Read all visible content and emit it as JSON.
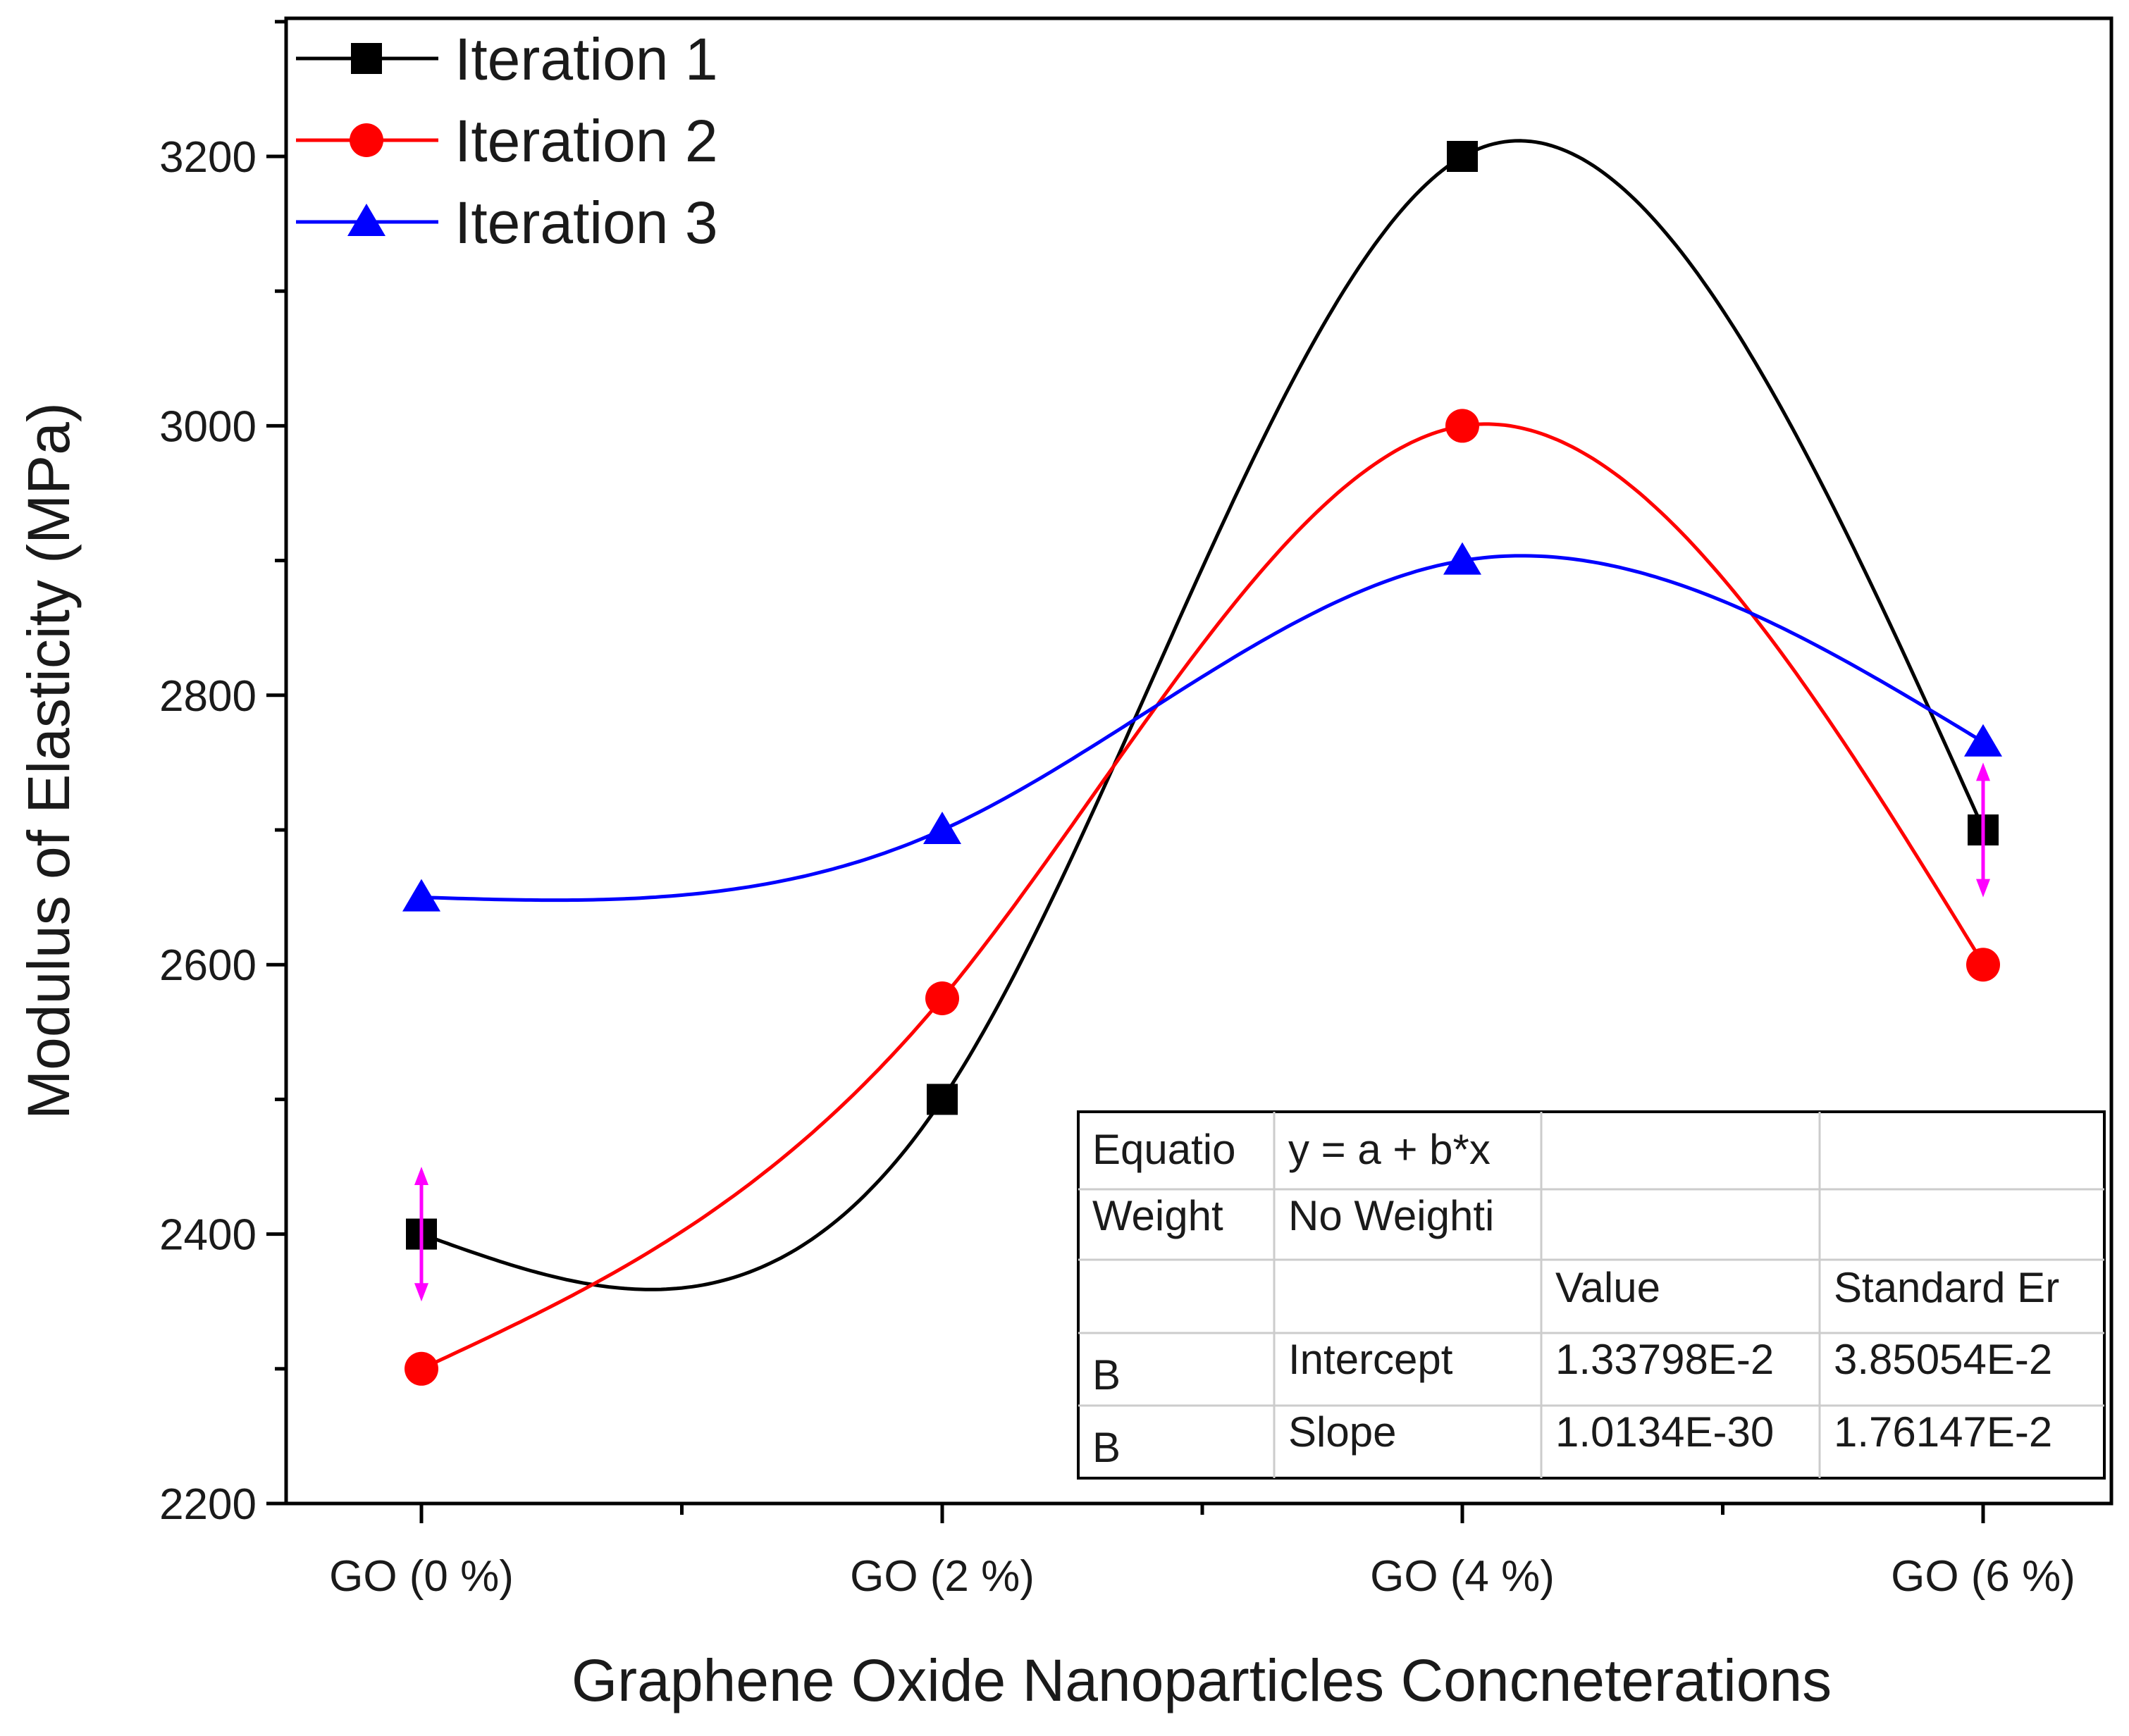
{
  "chart_data": {
    "type": "line",
    "title": "",
    "xlabel": "Graphene Oxide Nanoparticles Concneterations",
    "ylabel": "Modulus of Elasticity (MPa)",
    "categories": [
      "GO (0 %)",
      "GO (2 %)",
      "GO (4 %)",
      "GO (6 %)"
    ],
    "ylim": [
      2200,
      3300
    ],
    "yticks": [
      2200,
      2400,
      2600,
      2800,
      3000,
      3200
    ],
    "legend_position": "top-left",
    "smoothing": "spline",
    "series": [
      {
        "name": "Iteration 1",
        "marker": "square",
        "color": "#000000",
        "values": [
          2400,
          2500,
          3200,
          2700
        ]
      },
      {
        "name": "Iteration 2",
        "marker": "circle",
        "color": "#ff0000",
        "values": [
          2300,
          2575,
          3000,
          2600
        ]
      },
      {
        "name": "Iteration 3",
        "marker": "triangle",
        "color": "#0000ff",
        "values": [
          2650,
          2700,
          2900,
          2765
        ]
      }
    ],
    "annotations": [
      {
        "type": "double-arrow",
        "color": "#ff00ff",
        "category": "GO (0 %)",
        "y_from": 2350,
        "y_to": 2450
      },
      {
        "type": "double-arrow",
        "color": "#ff00ff",
        "category": "GO (6 %)",
        "y_from": 2650,
        "y_to": 2750
      }
    ],
    "stats_table": {
      "rows": [
        [
          "Equatio",
          "y = a + b*x",
          "",
          ""
        ],
        [
          "Weight",
          "No Weighti",
          "",
          ""
        ],
        [
          "",
          "",
          "Value",
          "Standard Er"
        ],
        [
          "B",
          "Intercept",
          "1.33798E-2",
          "3.85054E-2"
        ],
        [
          "B",
          "Slope",
          "1.0134E-30",
          "1.76147E-2"
        ]
      ]
    }
  }
}
